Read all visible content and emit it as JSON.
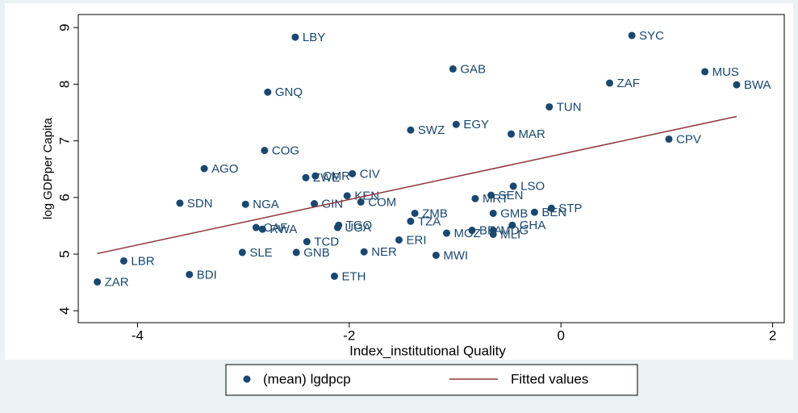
{
  "chart_data": {
    "type": "scatter",
    "xlabel": "Index_institutional Quality",
    "ylabel": "log GDPper Capita",
    "xlim": [
      -4.56,
      2.11
    ],
    "ylim": [
      3.79,
      9.23
    ],
    "xticks": [
      -4,
      -2,
      0,
      2
    ],
    "yticks": [
      4,
      5,
      6,
      7,
      8,
      9
    ],
    "grid": false,
    "series": [
      {
        "name": "(mean) lgdpcp",
        "color": "#1a476f",
        "labels": [
          "LBY",
          "SYC",
          "GAB",
          "MUS",
          "ZAF",
          "BWA",
          "GNQ",
          "TUN",
          "EGY",
          "SWZ",
          "MAR",
          "CPV",
          "COG",
          "AGO",
          "CIV",
          "CMR",
          "ZWE",
          "LSO",
          "KEN",
          "SEN",
          "MRT",
          "COM",
          "SDN",
          "NGA",
          "GIN",
          "STP",
          "BEN",
          "GMB",
          "ZMB",
          "TZA",
          "GHA",
          "TGO",
          "UGA",
          "CAF",
          "RWA",
          "BFA",
          "MDG",
          "MOZ",
          "MLI",
          "ERI",
          "TCD",
          "SLE",
          "GNB",
          "NER",
          "MWI",
          "LBR",
          "BDI",
          "ETH",
          "ZAR"
        ],
        "x": [
          -2.51,
          0.67,
          -1.02,
          1.36,
          0.46,
          1.66,
          -2.77,
          -0.11,
          -0.99,
          -1.42,
          -0.47,
          1.02,
          -2.8,
          -3.37,
          -1.97,
          -2.32,
          -2.41,
          -0.45,
          -2.02,
          -0.66,
          -0.81,
          -1.89,
          -3.6,
          -2.98,
          -2.33,
          -0.09,
          -0.25,
          -0.64,
          -1.38,
          -1.42,
          -0.46,
          -2.1,
          -2.11,
          -2.88,
          -2.82,
          -0.84,
          -0.64,
          -1.08,
          -0.64,
          -1.53,
          -2.4,
          -3.01,
          -2.5,
          -1.86,
          -1.18,
          -4.13,
          -3.51,
          -2.14,
          -4.38
        ],
        "values": [
          8.83,
          8.86,
          8.27,
          8.22,
          8.02,
          7.99,
          7.86,
          7.6,
          7.29,
          7.19,
          7.12,
          7.03,
          6.83,
          6.51,
          6.42,
          6.38,
          6.35,
          6.2,
          6.03,
          6.04,
          5.98,
          5.92,
          5.9,
          5.88,
          5.89,
          5.81,
          5.74,
          5.72,
          5.72,
          5.58,
          5.51,
          5.51,
          5.47,
          5.47,
          5.44,
          5.42,
          5.42,
          5.37,
          5.35,
          5.25,
          5.22,
          5.03,
          5.03,
          5.04,
          4.98,
          4.88,
          4.64,
          4.61,
          4.51
        ]
      },
      {
        "name": "Fitted values",
        "color": "#90353b",
        "style": "line",
        "x": [
          -4.38,
          1.66
        ],
        "values": [
          5.01,
          7.43
        ]
      }
    ]
  }
}
